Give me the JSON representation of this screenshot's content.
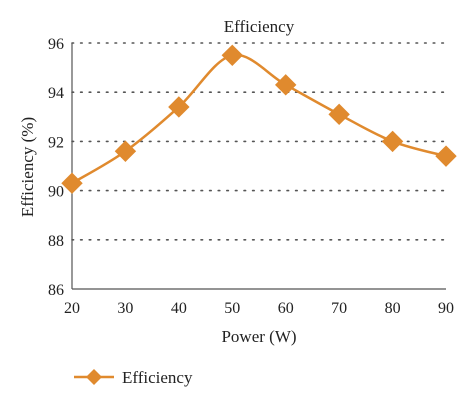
{
  "chart_data": {
    "type": "line",
    "title": "Efficiency",
    "xlabel": "Power (W)",
    "ylabel": "Efficiency (%)",
    "x": [
      20,
      30,
      40,
      50,
      60,
      70,
      80,
      90
    ],
    "xlim": [
      20,
      90
    ],
    "ylim": [
      86,
      96
    ],
    "x_ticks": [
      "20",
      "30",
      "40",
      "50",
      "60",
      "70",
      "80",
      "90"
    ],
    "y_ticks": [
      "86",
      "88",
      "90",
      "92",
      "94",
      "96"
    ],
    "grid": "horizontal dotted",
    "legend": "bottom-left",
    "series": [
      {
        "name": "Efficiency",
        "values": [
          90.3,
          91.6,
          93.4,
          95.5,
          94.3,
          93.1,
          92.0,
          91.4
        ],
        "color": "#E08A2E",
        "marker": "diamond",
        "smooth": true
      }
    ]
  }
}
